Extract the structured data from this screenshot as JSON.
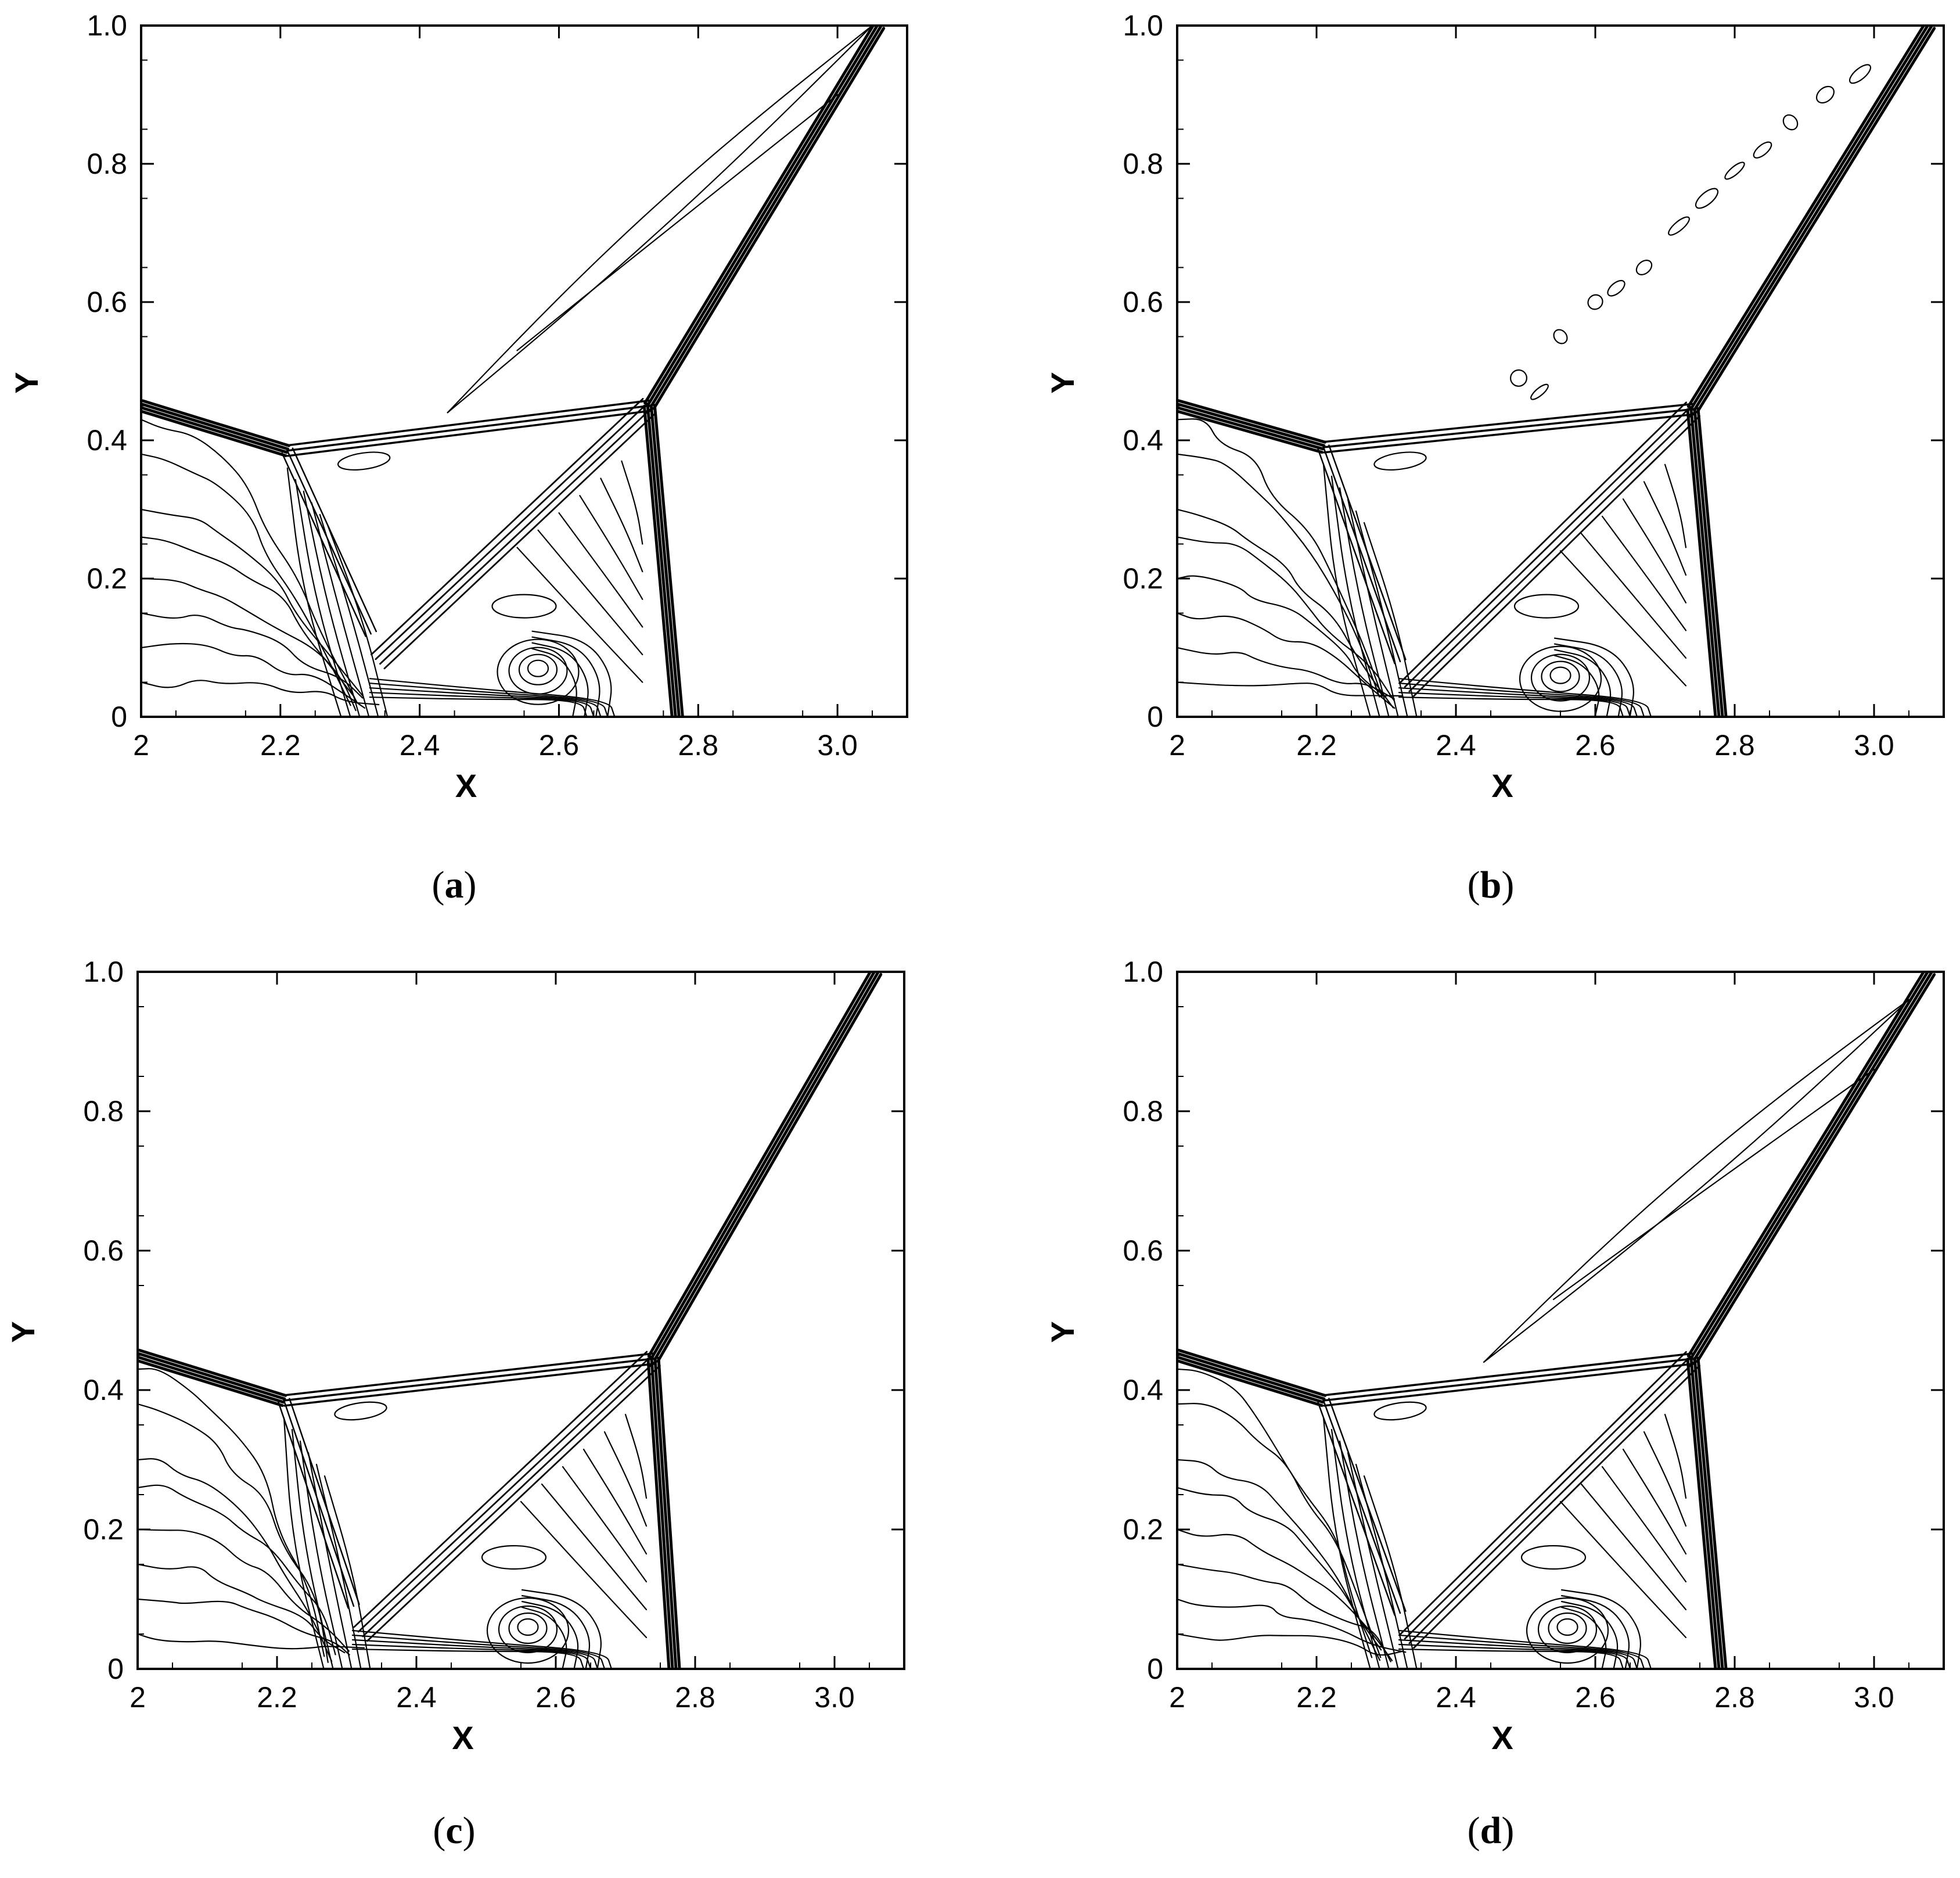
{
  "chart_data": [
    {
      "type": "contour",
      "caption_letter": "a",
      "xlabel": "X",
      "ylabel": "Y",
      "xlim": [
        2.0,
        3.1
      ],
      "ylim": [
        0.0,
        1.0
      ],
      "xticks": [
        2.0,
        2.2,
        2.4,
        2.6,
        2.8,
        3.0
      ],
      "xtick_labels": [
        "2",
        "2.2",
        "2.4",
        "2.6",
        "2.8",
        "3.0"
      ],
      "yticks": [
        0.0,
        0.2,
        0.4,
        0.6,
        0.8,
        1.0
      ],
      "ytick_labels": [
        "0",
        "0.2",
        "0.4",
        "0.6",
        "0.8",
        "1.0"
      ],
      "grid": false,
      "features": {
        "triple_point": [
          2.73,
          0.45
        ],
        "bow_shock_end": [
          3.06,
          1.0
        ],
        "mach_stem_foot": [
          2.77,
          0.0
        ],
        "incident_shock": [
          [
            2.0,
            0.45
          ],
          [
            2.21,
            0.385
          ]
        ],
        "reflected_shock": [
          [
            2.21,
            0.385
          ],
          [
            2.73,
            0.45
          ]
        ],
        "slip_line": [
          [
            2.73,
            0.45
          ],
          [
            2.34,
            0.08
          ]
        ],
        "vortex_center": [
          2.57,
          0.07
        ],
        "upper_slip_contour": [
          [
            2.44,
            0.44
          ],
          [
            3.05,
            1.0
          ]
        ],
        "jet_blobs": false
      }
    },
    {
      "type": "contour",
      "caption_letter": "b",
      "xlabel": "X",
      "ylabel": "Y",
      "xlim": [
        2.0,
        3.1
      ],
      "ylim": [
        0.0,
        1.0
      ],
      "xticks": [
        2.0,
        2.2,
        2.4,
        2.6,
        2.8,
        3.0
      ],
      "xtick_labels": [
        "2",
        "2.2",
        "2.4",
        "2.6",
        "2.8",
        "3.0"
      ],
      "yticks": [
        0.0,
        0.2,
        0.4,
        0.6,
        0.8,
        1.0
      ],
      "ytick_labels": [
        "0",
        "0.2",
        "0.4",
        "0.6",
        "0.8",
        "1.0"
      ],
      "grid": false,
      "features": {
        "triple_point": [
          2.74,
          0.445
        ],
        "bow_shock_end": [
          3.08,
          1.0
        ],
        "mach_stem_foot": [
          2.78,
          0.0
        ],
        "incident_shock": [
          [
            2.0,
            0.45
          ],
          [
            2.21,
            0.39
          ]
        ],
        "reflected_shock": [
          [
            2.21,
            0.39
          ],
          [
            2.74,
            0.445
          ]
        ],
        "slip_line": [
          [
            2.74,
            0.445
          ],
          [
            2.33,
            0.04
          ]
        ],
        "vortex_center": [
          2.55,
          0.06
        ],
        "upper_slip_contour": null,
        "jet_blobs": true
      }
    },
    {
      "type": "contour",
      "caption_letter": "c",
      "xlabel": "X",
      "ylabel": "Y",
      "xlim": [
        2.0,
        3.1
      ],
      "ylim": [
        0.0,
        1.0
      ],
      "xticks": [
        2.0,
        2.2,
        2.4,
        2.6,
        2.8,
        3.0
      ],
      "xtick_labels": [
        "2",
        "2.2",
        "2.4",
        "2.6",
        "2.8",
        "3.0"
      ],
      "yticks": [
        0.0,
        0.2,
        0.4,
        0.6,
        0.8,
        1.0
      ],
      "ytick_labels": [
        "0",
        "0.2",
        "0.4",
        "0.6",
        "0.8",
        "1.0"
      ],
      "grid": false,
      "features": {
        "triple_point": [
          2.74,
          0.445
        ],
        "bow_shock_end": [
          3.06,
          1.0
        ],
        "mach_stem_foot": [
          2.77,
          0.0
        ],
        "incident_shock": [
          [
            2.0,
            0.45
          ],
          [
            2.21,
            0.385
          ]
        ],
        "reflected_shock": [
          [
            2.21,
            0.385
          ],
          [
            2.74,
            0.445
          ]
        ],
        "slip_line": [
          [
            2.74,
            0.445
          ],
          [
            2.32,
            0.05
          ]
        ],
        "vortex_center": [
          2.56,
          0.06
        ],
        "upper_slip_contour": null,
        "jet_blobs": false
      }
    },
    {
      "type": "contour",
      "caption_letter": "d",
      "xlabel": "X",
      "ylabel": "Y",
      "xlim": [
        2.0,
        3.1
      ],
      "ylim": [
        0.0,
        1.0
      ],
      "xticks": [
        2.0,
        2.2,
        2.4,
        2.6,
        2.8,
        3.0
      ],
      "xtick_labels": [
        "2",
        "2.2",
        "2.4",
        "2.6",
        "2.8",
        "3.0"
      ],
      "yticks": [
        0.0,
        0.2,
        0.4,
        0.6,
        0.8,
        1.0
      ],
      "ytick_labels": [
        "0",
        "0.2",
        "0.4",
        "0.6",
        "0.8",
        "1.0"
      ],
      "grid": false,
      "features": {
        "triple_point": [
          2.74,
          0.445
        ],
        "bow_shock_end": [
          3.08,
          1.0
        ],
        "mach_stem_foot": [
          2.78,
          0.0
        ],
        "incident_shock": [
          [
            2.0,
            0.45
          ],
          [
            2.21,
            0.385
          ]
        ],
        "reflected_shock": [
          [
            2.21,
            0.385
          ],
          [
            2.74,
            0.445
          ]
        ],
        "slip_line": [
          [
            2.74,
            0.445
          ],
          [
            2.33,
            0.04
          ]
        ],
        "vortex_center": [
          2.56,
          0.06
        ],
        "upper_slip_contour": [
          [
            2.44,
            0.44
          ],
          [
            3.05,
            0.96
          ]
        ],
        "jet_blobs": false
      }
    }
  ]
}
